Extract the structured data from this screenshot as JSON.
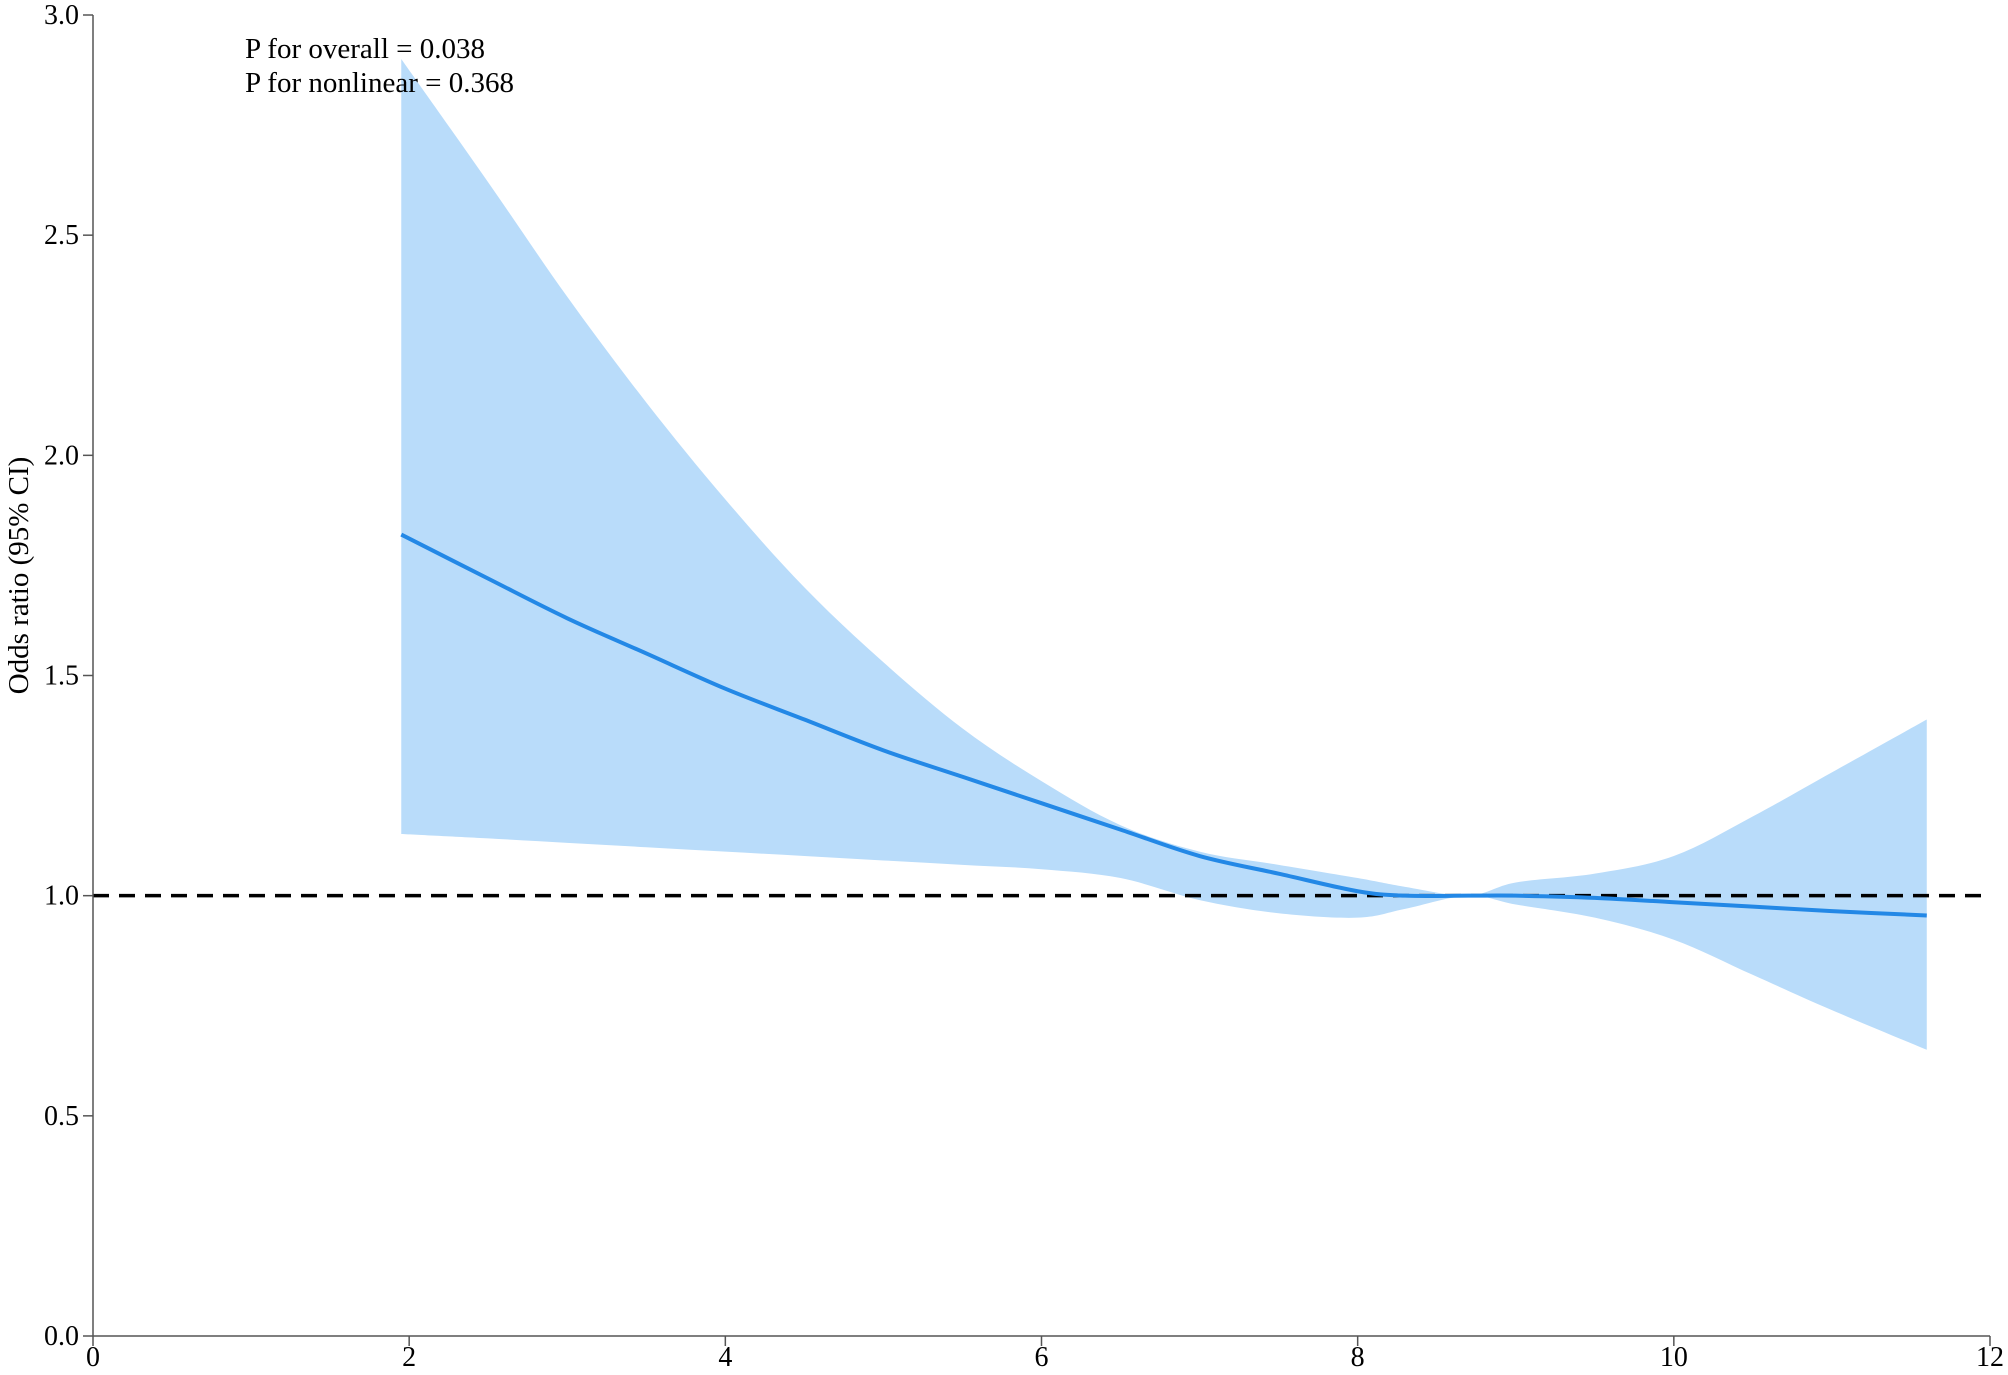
{
  "chart_data": {
    "type": "line",
    "title": "",
    "xlabel": "",
    "ylabel": "Odds ratio (95% CI)",
    "xlim": [
      0,
      12
    ],
    "ylim": [
      0.0,
      3.0
    ],
    "x_ticks": [
      0,
      2,
      4,
      6,
      8,
      10,
      12
    ],
    "y_ticks": [
      0.0,
      0.5,
      1.0,
      1.5,
      2.0,
      2.5,
      3.0
    ],
    "x_tick_labels": [
      "0",
      "2",
      "4",
      "6",
      "8",
      "10",
      "12"
    ],
    "y_tick_labels": [
      "0.0",
      "0.5",
      "1.0",
      "1.5",
      "2.0",
      "2.5",
      "3.0"
    ],
    "grid": false,
    "legend": "none",
    "annotations": [
      "P for overall = 0.038",
      "P for nonlinear = 0.368"
    ],
    "reference_line": {
      "y": 1.0,
      "style": "dashed",
      "color": "#000000"
    },
    "series": [
      {
        "x": [
          1.95,
          2.5,
          3.0,
          3.5,
          4.0,
          4.5,
          5.0,
          5.5,
          6.0,
          6.5,
          7.0,
          7.5,
          8.0,
          8.3,
          8.7,
          9.0,
          9.5,
          10.0,
          10.5,
          11.0,
          11.6
        ],
        "y": [
          1.82,
          1.72,
          1.63,
          1.55,
          1.47,
          1.4,
          1.33,
          1.27,
          1.21,
          1.15,
          1.09,
          1.05,
          1.01,
          1.0,
          1.0,
          1.0,
          0.995,
          0.985,
          0.975,
          0.965,
          0.955
        ],
        "lower": [
          1.14,
          1.13,
          1.12,
          1.11,
          1.1,
          1.09,
          1.08,
          1.07,
          1.06,
          1.04,
          0.99,
          0.96,
          0.95,
          0.97,
          1.0,
          0.98,
          0.95,
          0.9,
          0.82,
          0.74,
          0.65
        ],
        "upper": [
          2.9,
          2.62,
          2.36,
          2.12,
          1.9,
          1.7,
          1.53,
          1.38,
          1.26,
          1.16,
          1.1,
          1.07,
          1.04,
          1.02,
          1.0,
          1.03,
          1.05,
          1.09,
          1.18,
          1.28,
          1.4
        ],
        "line_color": "#2388e6",
        "band_color": "#b9dcfa"
      }
    ]
  }
}
